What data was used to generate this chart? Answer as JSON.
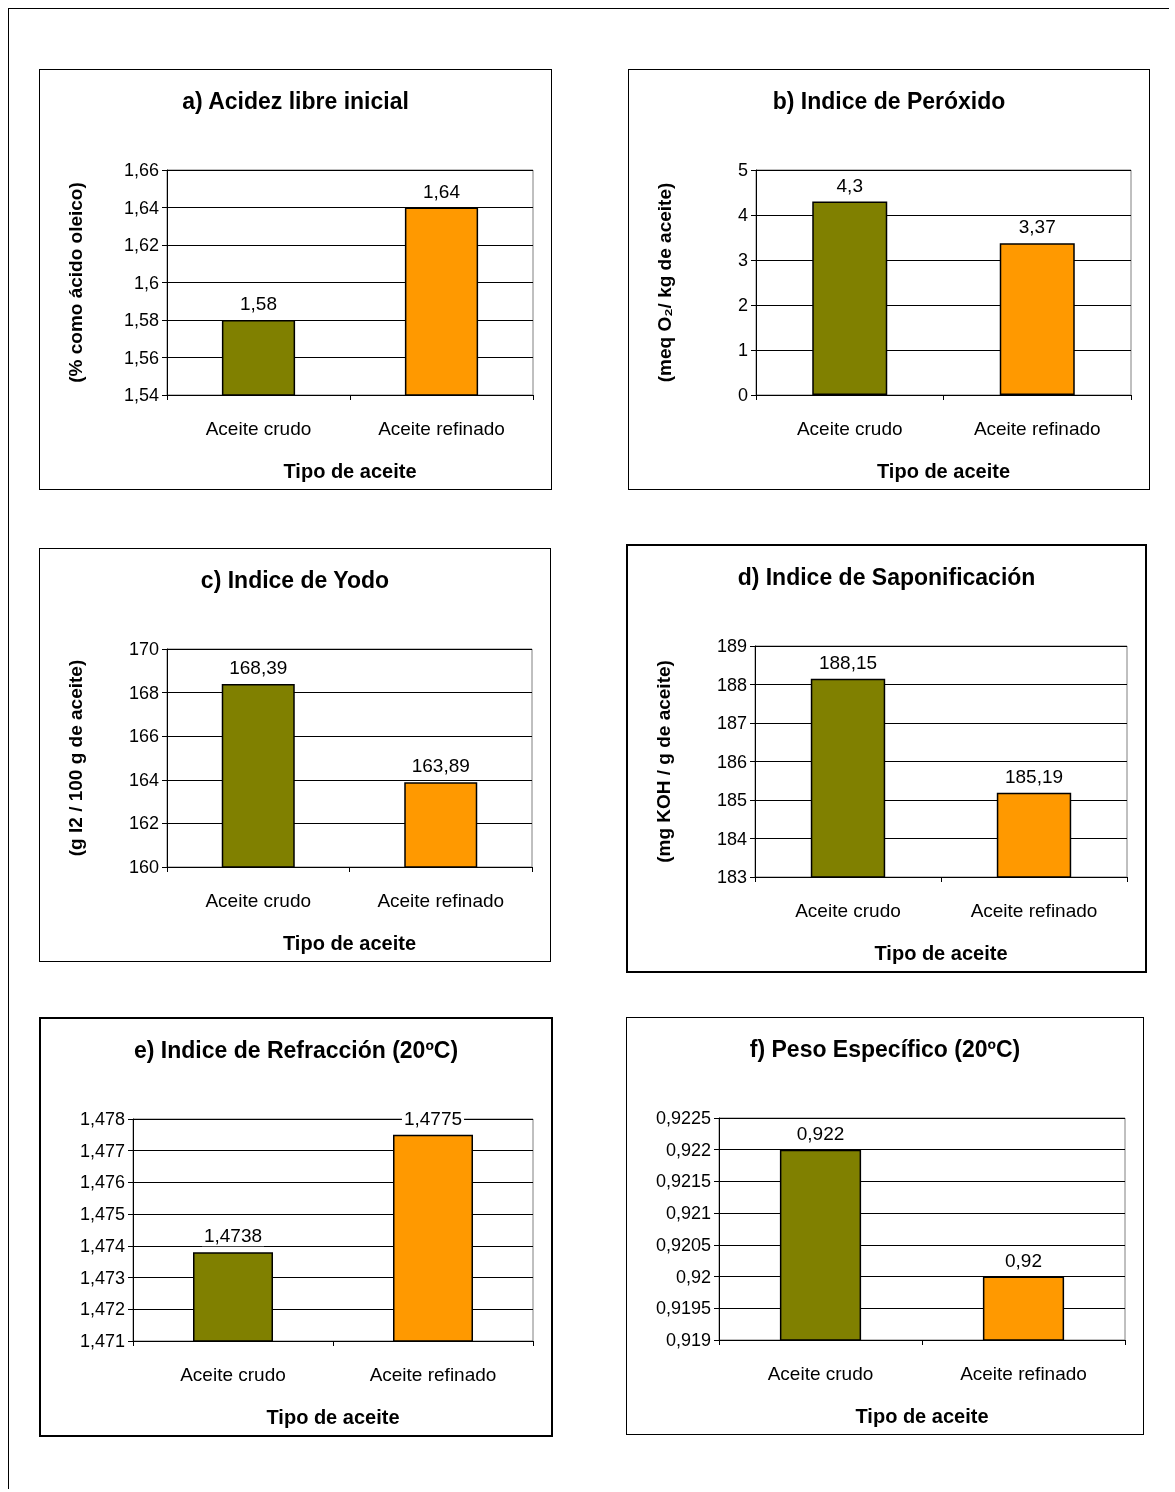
{
  "chart_data": [
    {
      "type": "bar",
      "title": "a) Acidez libre inicial",
      "ylabel": "(% como ácido oleico)",
      "xlabel": "Tipo de aceite",
      "categories": [
        "Aceite crudo",
        "Aceite refinado"
      ],
      "values": [
        1.58,
        1.64
      ],
      "value_labels": [
        "1,58",
        "1,64"
      ],
      "colors": [
        "#808000",
        "#ff9900"
      ],
      "ylim": [
        1.54,
        1.66
      ],
      "yticks": [
        {
          "value": 1.54,
          "label": "1,54"
        },
        {
          "value": 1.56,
          "label": "1,56"
        },
        {
          "value": 1.58,
          "label": "1,58"
        },
        {
          "value": 1.6,
          "label": "1,6"
        },
        {
          "value": 1.62,
          "label": "1,62"
        },
        {
          "value": 1.64,
          "label": "1,64"
        },
        {
          "value": 1.66,
          "label": "1,66"
        }
      ],
      "grid": "y"
    },
    {
      "type": "bar",
      "title": "b) Indice de Peróxido",
      "ylabel": "(meq O₂/ kg de aceite)",
      "xlabel": "Tipo de aceite",
      "categories": [
        "Aceite crudo",
        "Aceite refinado"
      ],
      "values": [
        4.3,
        3.37
      ],
      "value_labels": [
        "4,3",
        "3,37"
      ],
      "colors": [
        "#808000",
        "#ff9900"
      ],
      "ylim": [
        0,
        5
      ],
      "yticks": [
        0,
        1,
        2,
        3,
        4,
        5
      ],
      "grid": "y"
    },
    {
      "type": "bar",
      "title": "c) Indice de Yodo",
      "ylabel": "(g I2 / 100 g de aceite)",
      "xlabel": "Tipo de aceite",
      "categories": [
        "Aceite crudo",
        "Aceite refinado"
      ],
      "values": [
        168.39,
        163.89
      ],
      "value_labels": [
        "168,39",
        "163,89"
      ],
      "colors": [
        "#808000",
        "#ff9900"
      ],
      "ylim": [
        160,
        170
      ],
      "yticks": [
        160,
        162,
        164,
        166,
        168,
        170
      ],
      "grid": "y"
    },
    {
      "type": "bar",
      "title": "d) Indice de Saponificación",
      "ylabel": "(mg KOH / g de aceite)",
      "xlabel": "Tipo de aceite",
      "categories": [
        "Aceite crudo",
        "Aceite refinado"
      ],
      "values": [
        188.15,
        185.19
      ],
      "value_labels": [
        "188,15",
        "185,19"
      ],
      "colors": [
        "#808000",
        "#ff9900"
      ],
      "ylim": [
        183,
        189
      ],
      "yticks": [
        183,
        184,
        185,
        186,
        187,
        188,
        189
      ],
      "grid": "y"
    },
    {
      "type": "bar",
      "title": "e) Indice de Refracción (20ºC)",
      "xlabel": "Tipo de aceite",
      "categories": [
        "Aceite crudo",
        "Aceite refinado"
      ],
      "values": [
        1.4738,
        1.4775
      ],
      "value_labels": [
        "1,4738",
        "1,4775"
      ],
      "colors": [
        "#808000",
        "#ff9900"
      ],
      "ylim": [
        1.471,
        1.478
      ],
      "yticks": [
        {
          "value": 1.471,
          "label": "1,471"
        },
        {
          "value": 1.472,
          "label": "1,472"
        },
        {
          "value": 1.473,
          "label": "1,473"
        },
        {
          "value": 1.474,
          "label": "1,474"
        },
        {
          "value": 1.475,
          "label": "1,475"
        },
        {
          "value": 1.476,
          "label": "1,476"
        },
        {
          "value": 1.477,
          "label": "1,477"
        },
        {
          "value": 1.478,
          "label": "1,478"
        }
      ],
      "grid": "y"
    },
    {
      "type": "bar",
      "title": "f) Peso Específico (20ºC)",
      "xlabel": "Tipo de aceite",
      "categories": [
        "Aceite crudo",
        "Aceite refinado"
      ],
      "values": [
        0.922,
        0.92
      ],
      "value_labels": [
        "0,922",
        "0,92"
      ],
      "colors": [
        "#808000",
        "#ff9900"
      ],
      "ylim": [
        0.919,
        0.9225
      ],
      "yticks": [
        {
          "value": 0.919,
          "label": "0,919"
        },
        {
          "value": 0.9195,
          "label": "0,9195"
        },
        {
          "value": 0.92,
          "label": "0,92"
        },
        {
          "value": 0.9205,
          "label": "0,9205"
        },
        {
          "value": 0.921,
          "label": "0,921"
        },
        {
          "value": 0.9215,
          "label": "0,9215"
        },
        {
          "value": 0.922,
          "label": "0,922"
        },
        {
          "value": 0.9225,
          "label": "0,9225"
        }
      ],
      "grid": "y"
    }
  ]
}
